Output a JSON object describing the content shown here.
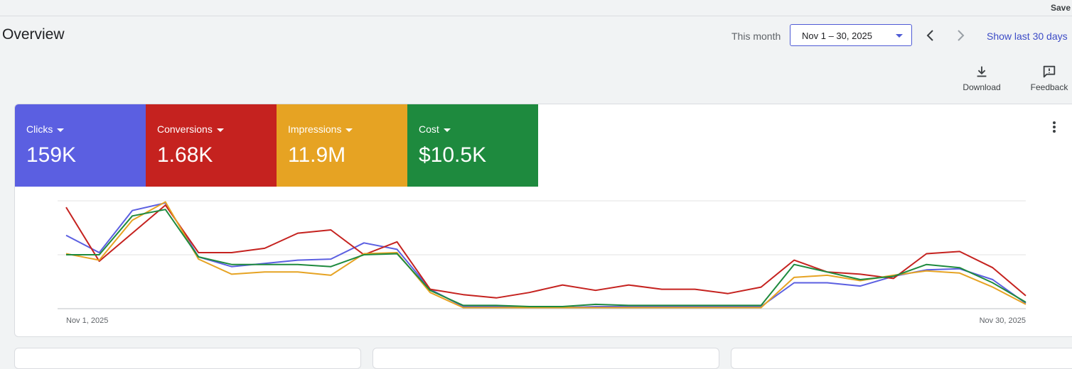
{
  "header": {
    "save_label": "Save",
    "title": "Overview"
  },
  "date_range": {
    "label": "This month",
    "value": "Nov 1 – 30, 2025",
    "show_last_label": "Show last 30 days"
  },
  "tools": {
    "download_label": "Download",
    "feedback_label": "Feedback"
  },
  "metrics": [
    {
      "label": "Clicks",
      "value": "159K",
      "color": "#5b5fe1"
    },
    {
      "label": "Conversions",
      "value": "1.68K",
      "color": "#c5221f"
    },
    {
      "label": "Impressions",
      "value": "11.9M",
      "color": "#e6a323"
    },
    {
      "label": "Cost",
      "value": "$10.5K",
      "color": "#1e8a3e"
    }
  ],
  "chart_data": {
    "type": "line",
    "x_start_label": "Nov 1, 2025",
    "x_end_label": "Nov 30, 2025",
    "ylim": [
      0,
      100
    ],
    "grid": true,
    "series": [
      {
        "color": "#5b5fe1",
        "values": [
          68,
          52,
          91,
          98,
          48,
          39,
          42,
          45,
          46,
          61,
          55,
          18,
          2,
          2,
          2,
          1,
          2,
          2,
          2,
          2,
          2,
          2,
          24,
          24,
          21,
          30,
          36,
          37,
          27,
          5
        ]
      },
      {
        "color": "#c5221f",
        "values": [
          94,
          44,
          70,
          96,
          52,
          52,
          56,
          70,
          73,
          50,
          62,
          18,
          13,
          10,
          15,
          22,
          17,
          22,
          18,
          18,
          14,
          20,
          45,
          34,
          32,
          28,
          51,
          53,
          38,
          12
        ]
      },
      {
        "color": "#e6a323",
        "values": [
          51,
          45,
          82,
          99,
          46,
          32,
          34,
          34,
          31,
          51,
          52,
          15,
          1,
          1,
          1,
          1,
          1,
          1,
          1,
          1,
          1,
          1,
          29,
          31,
          26,
          31,
          35,
          33,
          20,
          4
        ]
      },
      {
        "color": "#1e8a3e",
        "values": [
          50,
          50,
          86,
          92,
          48,
          41,
          41,
          41,
          39,
          50,
          51,
          17,
          3,
          3,
          2,
          2,
          4,
          3,
          3,
          3,
          3,
          3,
          41,
          34,
          27,
          30,
          41,
          38,
          24,
          6
        ]
      }
    ]
  }
}
